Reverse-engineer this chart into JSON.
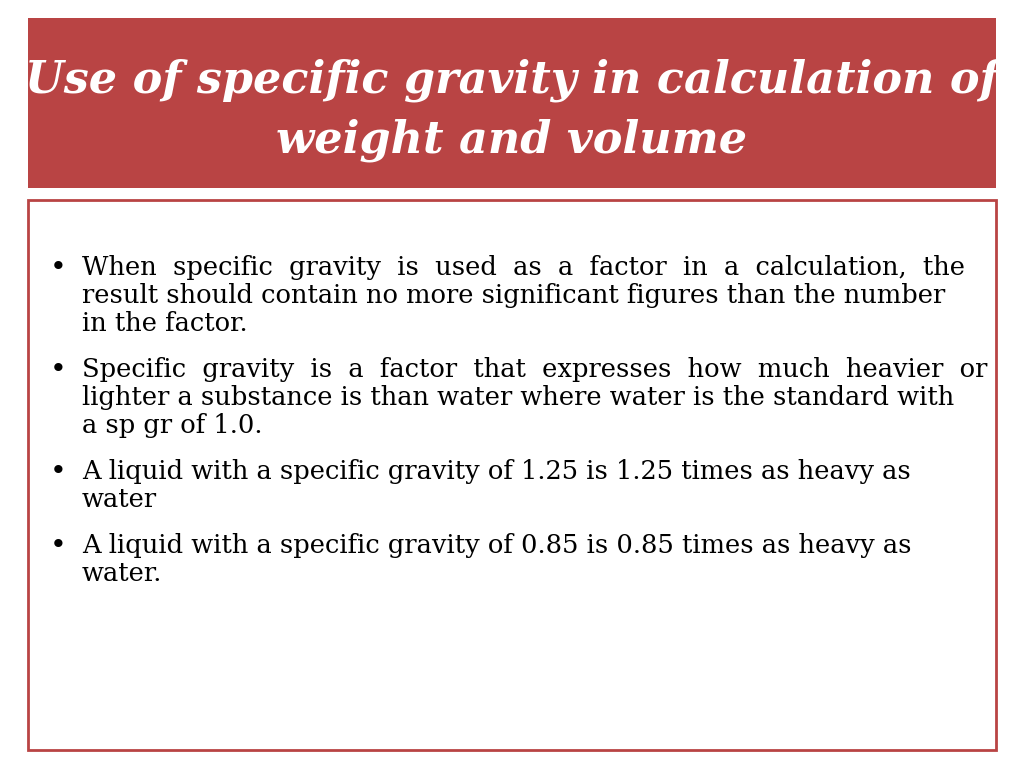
{
  "title_line1": "Use of specific gravity in calculation of",
  "title_line2": "weight and volume",
  "title_bg_color": "#B94444",
  "title_text_color": "#FFFFFF",
  "title_font_size": 32,
  "content_bg_color": "#FFFFFF",
  "content_border_color": "#B94444",
  "content_text_color": "#000000",
  "content_font_size": 18.5,
  "page_bg_color": "#FFFFFF",
  "bullet_lines": [
    [
      "When  specific  gravity  is  used  as  a  factor  in  a  calculation,  the",
      "result should contain no more significant figures than the number",
      "in the factor."
    ],
    [
      "Specific  gravity  is  a  factor  that  expresses  how  much  heavier  or",
      "lighter a substance is than water where water is the standard with",
      "a sp gr of 1.0."
    ],
    [
      "A liquid with a specific gravity of 1.25 is 1.25 times as heavy as",
      "water"
    ],
    [
      "A liquid with a specific gravity of 0.85 is 0.85 times as heavy as",
      "water."
    ]
  ]
}
